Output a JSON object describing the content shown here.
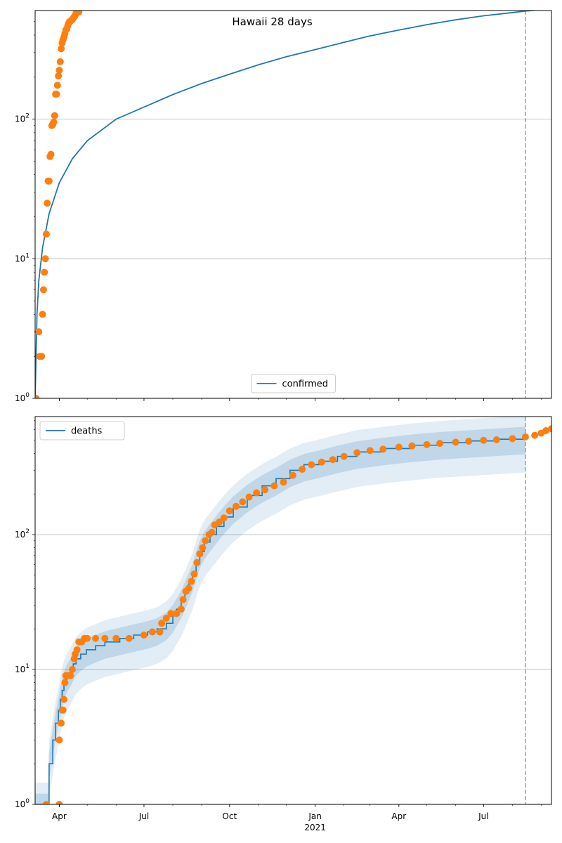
{
  "chart_data": [
    {
      "type": "line",
      "title": "Hawaii 28 days",
      "yscale": "log",
      "ylim": [
        1,
        600
      ],
      "xlim": [
        "2020-03-06",
        "2021-09-12"
      ],
      "grid": "y-major",
      "legend_location": "lower-center",
      "vline": "2021-08-15",
      "x_tick_labels": [
        {
          "date": "2020-04-01",
          "label": "Apr"
        },
        {
          "date": "2020-07-01",
          "label": "Jul"
        },
        {
          "date": "2020-10-01",
          "label": "Oct"
        },
        {
          "date": "2021-01-01",
          "label": "Jan"
        },
        {
          "date": "2021-04-01",
          "label": "Apr"
        },
        {
          "date": "2021-07-01",
          "label": "Jul"
        }
      ],
      "x_secondary_label": "2021",
      "y_tick_labels": [
        {
          "value": 1,
          "label": "10^0"
        },
        {
          "value": 10,
          "label": "10^1"
        },
        {
          "value": 100,
          "label": "10^2"
        }
      ],
      "series": [
        {
          "name": "confirmed",
          "kind": "line",
          "color": "#1f77b4",
          "points": [
            [
              "2020-03-06",
              1
            ],
            [
              "2020-03-08",
              4
            ],
            [
              "2020-03-10",
              7
            ],
            [
              "2020-03-14",
              12
            ],
            [
              "2020-03-21",
              21
            ],
            [
              "2020-04-01",
              35
            ],
            [
              "2020-04-15",
              52
            ],
            [
              "2020-05-01",
              70
            ],
            [
              "2020-06-01",
              100
            ],
            [
              "2020-07-01",
              122
            ],
            [
              "2020-08-01",
              150
            ],
            [
              "2020-09-01",
              180
            ],
            [
              "2020-10-01",
              210
            ],
            [
              "2020-11-01",
              245
            ],
            [
              "2020-12-01",
              280
            ],
            [
              "2021-01-01",
              315
            ],
            [
              "2021-02-01",
              355
            ],
            [
              "2021-03-01",
              395
            ],
            [
              "2021-04-01",
              435
            ],
            [
              "2021-05-01",
              475
            ],
            [
              "2021-06-01",
              515
            ],
            [
              "2021-07-01",
              550
            ],
            [
              "2021-08-01",
              580
            ],
            [
              "2021-08-15",
              595
            ],
            [
              "2021-09-12",
              615
            ]
          ]
        },
        {
          "name": "",
          "kind": "scatter",
          "color": "#ff7f0e",
          "points": [
            [
              "2020-03-06",
              1
            ],
            [
              "2020-03-07",
              1
            ],
            [
              "2020-03-10",
              3
            ],
            [
              "2020-03-11",
              2
            ],
            [
              "2020-03-13",
              2
            ],
            [
              "2020-03-14",
              4
            ],
            [
              "2020-03-15",
              6
            ],
            [
              "2020-03-16",
              8
            ],
            [
              "2020-03-17",
              10
            ],
            [
              "2020-03-18",
              15
            ],
            [
              "2020-03-19",
              25
            ],
            [
              "2020-03-20",
              36
            ],
            [
              "2020-03-21",
              36
            ],
            [
              "2020-03-22",
              54
            ],
            [
              "2020-03-23",
              56
            ],
            [
              "2020-03-24",
              90
            ],
            [
              "2020-03-25",
              92
            ],
            [
              "2020-03-26",
              95
            ],
            [
              "2020-03-27",
              106
            ],
            [
              "2020-03-28",
              151
            ],
            [
              "2020-03-29",
              151
            ],
            [
              "2020-03-30",
              175
            ],
            [
              "2020-03-31",
              204
            ],
            [
              "2020-04-01",
              224
            ],
            [
              "2020-04-02",
              258
            ],
            [
              "2020-04-03",
              319
            ],
            [
              "2020-04-04",
              351
            ],
            [
              "2020-04-05",
              371
            ],
            [
              "2020-04-06",
              387
            ],
            [
              "2020-04-07",
              410
            ],
            [
              "2020-04-08",
              435
            ],
            [
              "2020-04-09",
              442
            ],
            [
              "2020-04-10",
              465
            ],
            [
              "2020-04-11",
              486
            ],
            [
              "2020-04-12",
              499
            ],
            [
              "2020-04-13",
              504
            ],
            [
              "2020-04-14",
              511
            ],
            [
              "2020-04-15",
              517
            ],
            [
              "2020-04-16",
              530
            ],
            [
              "2020-04-17",
              541
            ],
            [
              "2020-04-18",
              553
            ],
            [
              "2020-04-19",
              574
            ],
            [
              "2020-04-20",
              580
            ],
            [
              "2020-04-21",
              584
            ],
            [
              "2020-04-22",
              586
            ]
          ]
        }
      ]
    },
    {
      "type": "line",
      "title": "",
      "yscale": "log",
      "ylim": [
        1,
        750
      ],
      "xlim": [
        "2020-03-06",
        "2021-09-12"
      ],
      "grid": "y-major",
      "legend_location": "upper-left",
      "vline": "2021-08-15",
      "series": [
        {
          "name": "deaths",
          "kind": "step",
          "color": "#1f77b4",
          "points": [
            [
              "2020-03-06",
              1
            ],
            [
              "2020-03-20",
              1
            ],
            [
              "2020-03-21",
              2
            ],
            [
              "2020-03-25",
              3
            ],
            [
              "2020-03-28",
              4
            ],
            [
              "2020-03-31",
              5
            ],
            [
              "2020-04-02",
              6
            ],
            [
              "2020-04-04",
              7
            ],
            [
              "2020-04-06",
              8
            ],
            [
              "2020-04-09",
              9
            ],
            [
              "2020-04-13",
              10
            ],
            [
              "2020-04-16",
              11
            ],
            [
              "2020-04-19",
              12
            ],
            [
              "2020-04-24",
              13
            ],
            [
              "2020-04-30",
              14
            ],
            [
              "2020-05-10",
              15
            ],
            [
              "2020-05-20",
              16
            ],
            [
              "2020-06-05",
              17
            ],
            [
              "2020-06-20",
              18
            ],
            [
              "2020-07-05",
              19
            ],
            [
              "2020-07-15",
              20
            ],
            [
              "2020-07-25",
              22
            ],
            [
              "2020-08-01",
              25
            ],
            [
              "2020-08-05",
              28
            ],
            [
              "2020-08-10",
              32
            ],
            [
              "2020-08-14",
              37
            ],
            [
              "2020-08-18",
              43
            ],
            [
              "2020-08-22",
              50
            ],
            [
              "2020-08-26",
              62
            ],
            [
              "2020-08-30",
              75
            ],
            [
              "2020-09-04",
              88
            ],
            [
              "2020-09-10",
              100
            ],
            [
              "2020-09-17",
              115
            ],
            [
              "2020-09-25",
              135
            ],
            [
              "2020-10-05",
              160
            ],
            [
              "2020-10-20",
              195
            ],
            [
              "2020-11-05",
              230
            ],
            [
              "2020-11-20",
              260
            ],
            [
              "2020-12-05",
              300
            ],
            [
              "2020-12-20",
              330
            ],
            [
              "2021-01-05",
              350
            ],
            [
              "2021-01-25",
              380
            ],
            [
              "2021-02-15",
              410
            ],
            [
              "2021-03-15",
              435
            ],
            [
              "2021-04-15",
              460
            ],
            [
              "2021-05-15",
              480
            ],
            [
              "2021-06-15",
              495
            ],
            [
              "2021-07-15",
              510
            ],
            [
              "2021-08-15",
              525
            ]
          ],
          "band_outer_ratio": [
            0.55,
            1.45
          ],
          "band_inner_ratio": [
            0.75,
            1.2
          ]
        },
        {
          "name": "",
          "kind": "scatter",
          "color": "#ff7f0e",
          "points": [
            [
              "2020-03-18",
              1
            ],
            [
              "2020-04-01",
              1
            ],
            [
              "2020-04-01",
              3
            ],
            [
              "2020-04-03",
              4
            ],
            [
              "2020-04-04",
              5
            ],
            [
              "2020-04-05",
              5
            ],
            [
              "2020-04-06",
              6
            ],
            [
              "2020-04-07",
              8
            ],
            [
              "2020-04-08",
              9
            ],
            [
              "2020-04-10",
              9
            ],
            [
              "2020-04-13",
              9
            ],
            [
              "2020-04-15",
              10
            ],
            [
              "2020-04-17",
              12
            ],
            [
              "2020-04-18",
              13
            ],
            [
              "2020-04-20",
              14
            ],
            [
              "2020-04-22",
              16
            ],
            [
              "2020-04-25",
              16
            ],
            [
              "2020-04-28",
              17
            ],
            [
              "2020-05-01",
              17
            ],
            [
              "2020-05-10",
              17
            ],
            [
              "2020-05-20",
              17
            ],
            [
              "2020-06-01",
              17
            ],
            [
              "2020-06-15",
              17
            ],
            [
              "2020-07-01",
              18
            ],
            [
              "2020-07-10",
              19
            ],
            [
              "2020-07-18",
              19
            ],
            [
              "2020-07-20",
              22
            ],
            [
              "2020-07-25",
              24
            ],
            [
              "2020-07-30",
              26
            ],
            [
              "2020-08-05",
              26
            ],
            [
              "2020-08-10",
              28
            ],
            [
              "2020-08-12",
              33
            ],
            [
              "2020-08-15",
              38
            ],
            [
              "2020-08-18",
              40
            ],
            [
              "2020-08-21",
              45
            ],
            [
              "2020-08-24",
              51
            ],
            [
              "2020-08-27",
              62
            ],
            [
              "2020-08-30",
              72
            ],
            [
              "2020-09-02",
              80
            ],
            [
              "2020-09-05",
              90
            ],
            [
              "2020-09-09",
              100
            ],
            [
              "2020-09-12",
              104
            ],
            [
              "2020-09-15",
              118
            ],
            [
              "2020-09-20",
              124
            ],
            [
              "2020-09-25",
              133
            ],
            [
              "2020-10-01",
              150
            ],
            [
              "2020-10-08",
              162
            ],
            [
              "2020-10-15",
              175
            ],
            [
              "2020-10-22",
              190
            ],
            [
              "2020-10-30",
              204
            ],
            [
              "2020-11-08",
              215
            ],
            [
              "2020-11-18",
              230
            ],
            [
              "2020-11-28",
              245
            ],
            [
              "2020-12-08",
              275
            ],
            [
              "2020-12-18",
              305
            ],
            [
              "2020-12-28",
              330
            ],
            [
              "2021-01-08",
              345
            ],
            [
              "2021-01-20",
              360
            ],
            [
              "2021-02-01",
              380
            ],
            [
              "2021-02-15",
              405
            ],
            [
              "2021-03-01",
              420
            ],
            [
              "2021-03-15",
              430
            ],
            [
              "2021-04-01",
              445
            ],
            [
              "2021-04-15",
              455
            ],
            [
              "2021-05-01",
              465
            ],
            [
              "2021-05-15",
              475
            ],
            [
              "2021-06-01",
              485
            ],
            [
              "2021-06-15",
              492
            ],
            [
              "2021-07-01",
              500
            ],
            [
              "2021-07-15",
              505
            ],
            [
              "2021-08-01",
              515
            ],
            [
              "2021-08-15",
              530
            ],
            [
              "2021-08-25",
              545
            ],
            [
              "2021-09-01",
              565
            ],
            [
              "2021-09-06",
              590
            ],
            [
              "2021-09-12",
              610
            ]
          ]
        }
      ]
    }
  ]
}
